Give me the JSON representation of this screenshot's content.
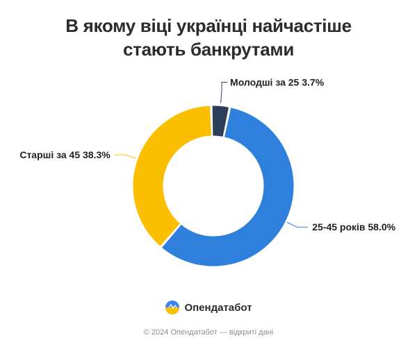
{
  "header": {
    "title_line1": "В якому віці українці найчастіше",
    "title_line2": "стають банкрутами"
  },
  "chart_data": {
    "type": "pie",
    "variant": "donut",
    "title": "В якому віці українці найчастіше стають банкрутами",
    "slices": [
      {
        "label": "Молодші за 25",
        "value": 3.7,
        "value_label": "3.7%",
        "color": "#2e3f5c"
      },
      {
        "label": "25-45 років",
        "value": 58.0,
        "value_label": "58.0%",
        "color": "#2f80dd"
      },
      {
        "label": "Старші за 45",
        "value": 38.3,
        "value_label": "38.3%",
        "color": "#fbbf00"
      }
    ]
  },
  "brand": {
    "name": "Опендатабот",
    "logo_icon": "opendatabot-logo-icon",
    "logo_colors": [
      "#3b82f6",
      "#fbbf00"
    ]
  },
  "footer": {
    "text": "© 2024 Опендатабот — відкриті дані"
  }
}
